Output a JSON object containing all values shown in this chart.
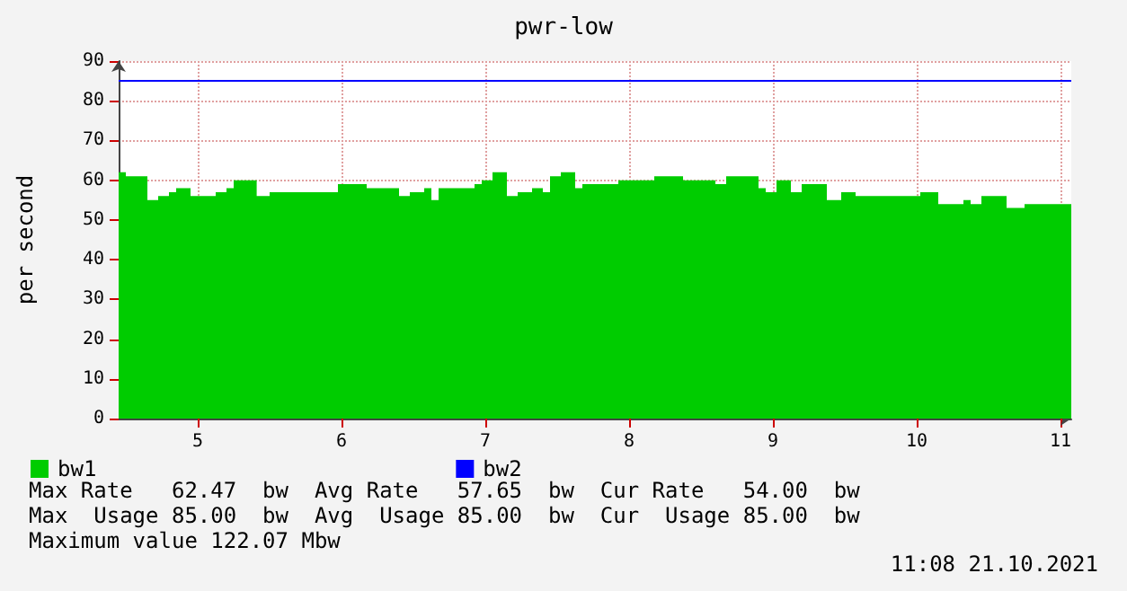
{
  "chart_data": {
    "type": "area",
    "title": "pwr-low",
    "ylabel": "per second",
    "xlim": [
      4.45,
      11.075
    ],
    "xticks": [
      5,
      6,
      7,
      8,
      9,
      10,
      11
    ],
    "ylim": [
      0,
      90
    ],
    "yticks": [
      0,
      10,
      20,
      30,
      40,
      50,
      60,
      70,
      80,
      90
    ],
    "grid": true,
    "legend": "bottom",
    "marker": "none",
    "series": [
      {
        "name": "bw1",
        "color": "#00cc00",
        "x": [
          4.45,
          4.5,
          4.65,
          4.725,
          4.8,
          4.85,
          4.95,
          5.125,
          5.2,
          5.25,
          5.41,
          5.5,
          5.975,
          6.175,
          6.4,
          6.475,
          6.575,
          6.625,
          6.675,
          6.925,
          6.975,
          7.05,
          7.15,
          7.225,
          7.325,
          7.4,
          7.45,
          7.525,
          7.625,
          7.675,
          7.925,
          8.175,
          8.375,
          8.6,
          8.675,
          8.9,
          8.95,
          9.025,
          9.125,
          9.2,
          9.375,
          9.475,
          9.575,
          10.025,
          10.15,
          10.325,
          10.375,
          10.45,
          10.625,
          10.75,
          11.075
        ],
        "values": [
          62,
          61,
          55,
          56,
          57,
          58,
          56,
          57,
          58,
          60,
          56,
          57,
          59,
          58,
          56,
          57,
          58,
          55,
          58,
          59,
          60,
          62,
          56,
          57,
          58,
          57,
          61,
          62,
          58,
          59,
          60,
          61,
          60,
          59,
          61,
          58,
          57,
          60,
          57,
          59,
          55,
          57,
          56,
          57,
          54,
          55,
          54,
          56,
          53,
          54,
          54
        ]
      },
      {
        "name": "bw2",
        "color": "#0000ff",
        "type": "line",
        "x": [
          4.45,
          11.075
        ],
        "values": [
          85,
          85
        ]
      }
    ],
    "annotations": [
      "Max Rate   62.47  bw  Avg Rate   57.65  bw  Cur Rate   54.00  bw",
      "Max  Usage 85.00  bw  Avg  Usage 85.00  bw  Cur  Usage 85.00  bw",
      "Maximum value 122.07 Mbw",
      "11:08 21.10.2021"
    ]
  }
}
